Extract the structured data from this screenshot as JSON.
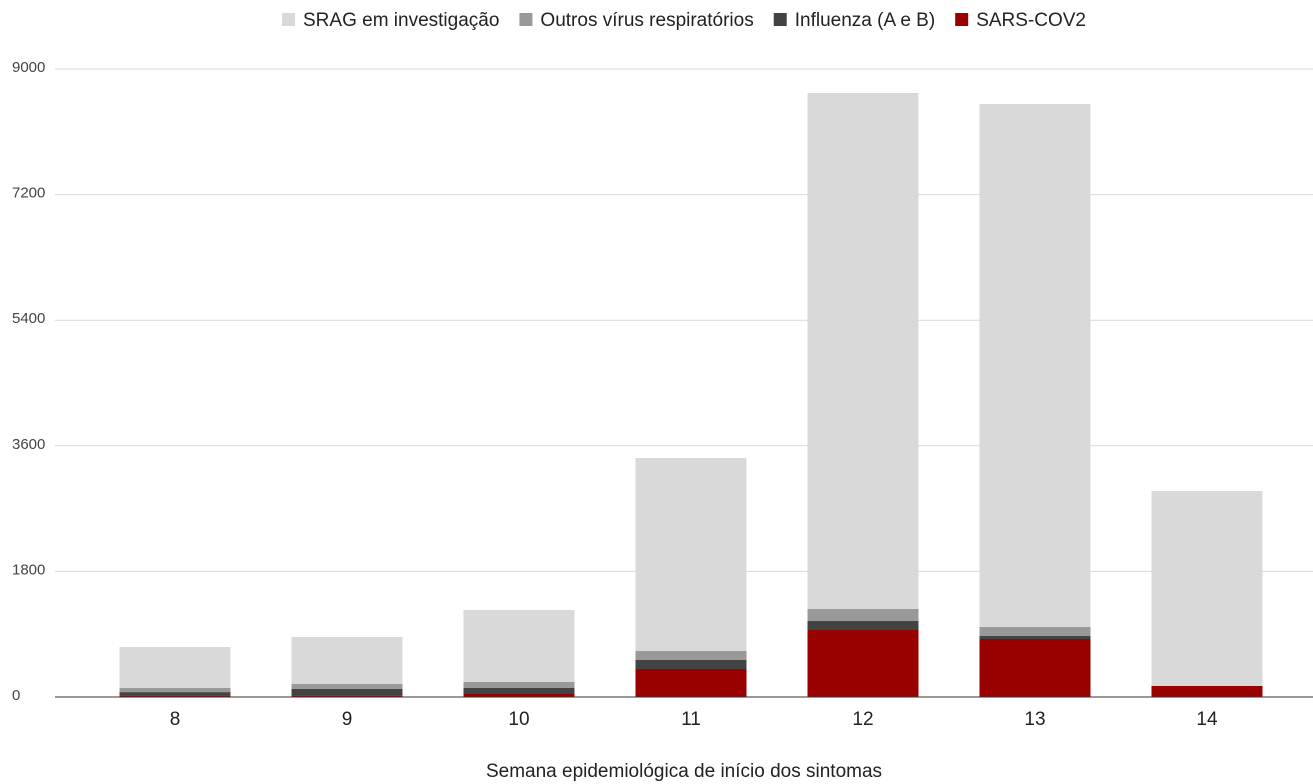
{
  "chart_data": {
    "type": "stacked_bar",
    "xlabel": "Semana epidemiológica de início dos sintomas",
    "categories": [
      "8",
      "9",
      "10",
      "11",
      "12",
      "13",
      "14"
    ],
    "series": [
      {
        "name": "SRAG em investigação",
        "color": "#d9d9d9",
        "values": [
          586,
          674,
          1032,
          2766,
          7395,
          7495,
          2794
        ]
      },
      {
        "name": "Outros vírus respiratórios",
        "color": "#999999",
        "values": [
          60,
          71,
          86,
          129,
          172,
          129,
          0
        ]
      },
      {
        "name": "Influenza (A e B)",
        "color": "#434343",
        "values": [
          50,
          95,
          86,
          129,
          129,
          43,
          0
        ]
      },
      {
        "name": "SARS-COV2",
        "color": "#990000",
        "values": [
          20,
          20,
          43,
          401,
          960,
          831,
          158
        ]
      }
    ],
    "ylim": [
      0,
      9000
    ],
    "yticks": [
      0,
      1800,
      3600,
      5400,
      7200,
      9000
    ],
    "grid": true,
    "legend": "top"
  }
}
